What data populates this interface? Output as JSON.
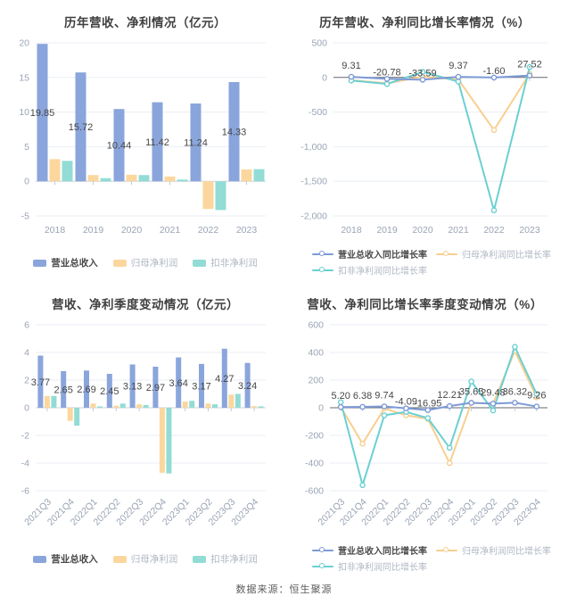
{
  "palette": {
    "background": "#FFFFFF",
    "grid": "#E8EDF5",
    "zero_bar": "#CBD1DA",
    "zero_line": "#63676F",
    "tick": "#C6CBD4",
    "axis_text": "#9AA4B5",
    "data_label": "#474747",
    "title_text": "#3F3F3F",
    "legend_active": "#4A4A4A",
    "legend_muted": "#AFB7C3",
    "bar_blue": "#8AA5DB",
    "bar_orange": "#FBD79E",
    "bar_teal": "#92DCD5",
    "line_blue": "#7D9AD6",
    "line_orange": "#F8CF90",
    "line_teal": "#6CCFD2"
  },
  "footer": {
    "source": "数据来源：恒生聚源"
  },
  "chart_data": [
    {
      "type": "bar",
      "title": "历年营收、净利情况（亿元）",
      "legend": "square",
      "categories": [
        "2018",
        "2019",
        "2020",
        "2021",
        "2022",
        "2023"
      ],
      "ylim": [
        -5,
        20
      ],
      "yticks": [
        [
          20,
          "20"
        ],
        [
          15,
          "15"
        ],
        [
          10,
          "10"
        ],
        [
          5,
          "5"
        ],
        [
          0,
          "0"
        ],
        [
          -5,
          "-5"
        ]
      ],
      "series": [
        {
          "key": "revenue",
          "name": "营业总收入",
          "color": "#8AA5DB",
          "values": [
            19.85,
            15.72,
            10.44,
            11.42,
            11.24,
            14.33
          ]
        },
        {
          "key": "net-profit",
          "name": "归母净利润",
          "color": "#FBD79E",
          "values": [
            3.2,
            0.9,
            0.95,
            0.7,
            -4.0,
            1.72
          ]
        },
        {
          "key": "non-gaap",
          "name": "扣非净利润",
          "color": "#92DCD5",
          "values": [
            2.95,
            0.45,
            0.9,
            0.25,
            -4.15,
            1.75
          ]
        }
      ],
      "labels": [
        "19.85",
        "15.72",
        "10.44",
        "11.42",
        "11.24",
        "14.33"
      ]
    },
    {
      "type": "line",
      "title": "历年营收、净利同比增长率情况（%）",
      "legend": "line",
      "categories": [
        "2018",
        "2019",
        "2020",
        "2021",
        "2022",
        "2023"
      ],
      "ylim": [
        -2000,
        500
      ],
      "yticks": [
        [
          500,
          "500"
        ],
        [
          0,
          "0"
        ],
        [
          -500,
          "-500"
        ],
        [
          -1000,
          "-1,000"
        ],
        [
          -1500,
          "-1,500"
        ],
        [
          -2000,
          "-2,000"
        ]
      ],
      "series": [
        {
          "key": "revenue-growth",
          "name": "营业总收入同比增长率",
          "color": "#7D9AD6",
          "values": [
            9.31,
            -20.78,
            -33.59,
            9.37,
            -1.6,
            27.52
          ]
        },
        {
          "key": "net-profit-growth",
          "name": "归母净利润同比增长率",
          "color": "#F8CF90",
          "values": [
            -40,
            -85,
            10,
            -30,
            -760,
            55
          ]
        },
        {
          "key": "non-gaap-growth",
          "name": "扣非净利润同比增长率",
          "color": "#6CCFD2",
          "values": [
            -45,
            -95,
            80,
            -60,
            -1920,
            150
          ]
        }
      ],
      "labels": [
        "9.31",
        "-20.78",
        "-33.59",
        "9.37",
        "-1.60",
        "27.52"
      ]
    },
    {
      "type": "bar",
      "title": "营收、净利季度变动情况（亿元）",
      "legend": "square",
      "categories": [
        "2021Q3",
        "2021Q4",
        "2022Q1",
        "2022Q2",
        "2022Q3",
        "2022Q4",
        "2023Q1",
        "2023Q2",
        "2023Q3",
        "2023Q4"
      ],
      "ylim": [
        -6,
        6
      ],
      "yticks": [
        [
          6,
          "6"
        ],
        [
          4,
          "4"
        ],
        [
          2,
          "2"
        ],
        [
          0,
          "0"
        ],
        [
          -2,
          "-2"
        ],
        [
          -4,
          "-4"
        ],
        [
          -6,
          "-6"
        ]
      ],
      "series": [
        {
          "key": "revenue",
          "name": "营业总收入",
          "color": "#8AA5DB",
          "values": [
            3.77,
            2.65,
            2.69,
            2.45,
            3.13,
            2.97,
            3.64,
            3.17,
            4.27,
            3.24
          ]
        },
        {
          "key": "net-profit",
          "name": "归母净利润",
          "color": "#FBD79E",
          "values": [
            0.85,
            -0.95,
            0.3,
            0.15,
            0.25,
            -4.7,
            0.45,
            0.3,
            0.95,
            0.12
          ]
        },
        {
          "key": "non-gaap",
          "name": "扣非净利润",
          "color": "#92DCD5",
          "values": [
            0.85,
            -1.3,
            0.1,
            0.3,
            0.2,
            -4.75,
            0.5,
            0.25,
            1.0,
            0.1
          ]
        }
      ],
      "labels": [
        "3.77",
        "2.65",
        "2.69",
        "2.45",
        "3.13",
        "2.97",
        "3.64",
        "3.17",
        "4.27",
        "3.24"
      ]
    },
    {
      "type": "line",
      "title": "营收、净利同比增长率季度变动情况（%）",
      "legend": "line",
      "categories": [
        "2021Q3",
        "2021Q4",
        "2022Q1",
        "2022Q2",
        "2022Q3",
        "2022Q4",
        "2023Q1",
        "2023Q2",
        "2023Q3",
        "2023Q4"
      ],
      "ylim": [
        -600,
        600
      ],
      "yticks": [
        [
          600,
          "600"
        ],
        [
          400,
          "400"
        ],
        [
          200,
          "200"
        ],
        [
          0,
          "0"
        ],
        [
          -200,
          "-200"
        ],
        [
          -400,
          "-400"
        ],
        [
          -600,
          "-600"
        ]
      ],
      "series": [
        {
          "key": "revenue-growth",
          "name": "营业总收入同比增长率",
          "color": "#7D9AD6",
          "values": [
            5.2,
            6.38,
            9.74,
            -4.09,
            -16.95,
            12.21,
            35.65,
            29.48,
            36.32,
            9.26
          ]
        },
        {
          "key": "net-profit-growth",
          "name": "归母净利润同比增长率",
          "color": "#F8CF90",
          "values": [
            5,
            -260,
            -5,
            -55,
            -80,
            -400,
            35,
            30,
            410,
            75
          ]
        },
        {
          "key": "non-gaap-growth",
          "name": "扣非净利润同比增长率",
          "color": "#6CCFD2",
          "values": [
            40,
            -560,
            -55,
            -30,
            -75,
            -290,
            190,
            -20,
            440,
            100
          ]
        }
      ],
      "labels": [
        "5.20",
        "6.38",
        "9.74",
        "-4.09",
        "-16.95",
        "12.21",
        "35.65",
        "29.48",
        "36.32",
        "9.26"
      ]
    }
  ]
}
